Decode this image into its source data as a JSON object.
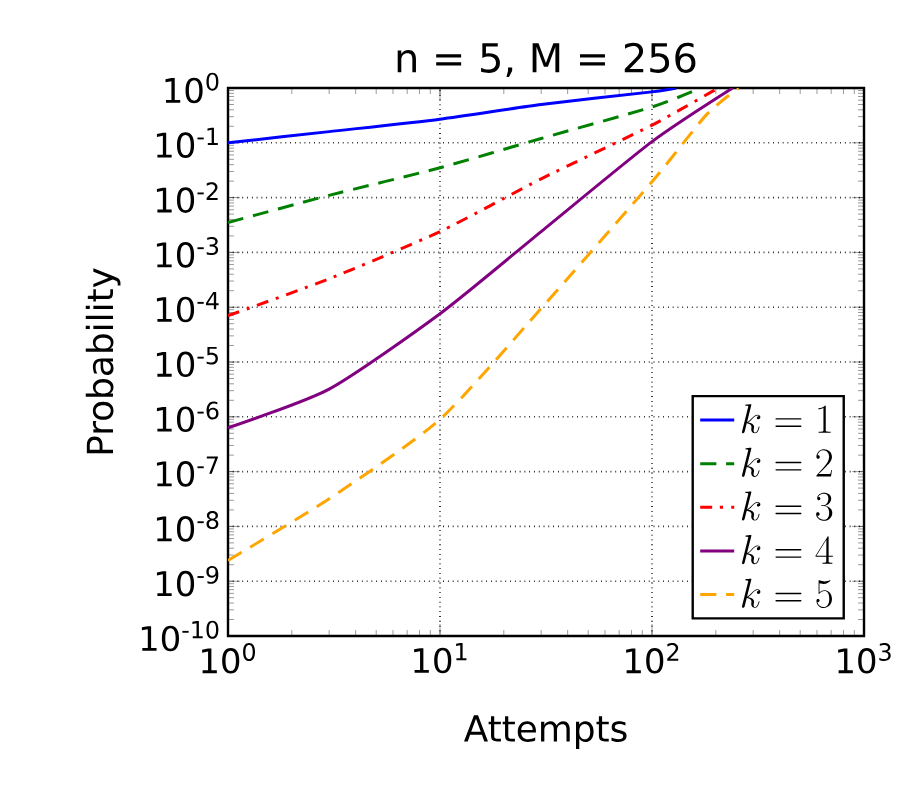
{
  "chart_data": {
    "type": "line",
    "title": "n = 5, M = 256",
    "xlabel": "Attempts",
    "ylabel": "Probability",
    "log": "xy",
    "grid": true,
    "legend": "bottom right",
    "xlim": [
      1,
      1000
    ],
    "ylim": [
      1e-10,
      1
    ],
    "xticks": [
      {
        "value": 1,
        "label": "10$^{0}$"
      },
      {
        "value": 10,
        "label": "10$^{1}$"
      },
      {
        "value": 100,
        "label": "10$^{2}$"
      },
      {
        "value": 1000,
        "label": "10$^{3}$"
      }
    ],
    "yticks": [
      {
        "value": 1e-10,
        "label": "10$^{-10}$"
      },
      {
        "value": 1e-09,
        "label": "10$^{-9}$"
      },
      {
        "value": 1e-08,
        "label": "10$^{-8}$"
      },
      {
        "value": 1e-07,
        "label": "10$^{-7}$"
      },
      {
        "value": 1e-06,
        "label": "10$^{-6}$"
      },
      {
        "value": 1e-05,
        "label": "10$^{-5}$"
      },
      {
        "value": 0.0001,
        "label": "10$^{-4}$"
      },
      {
        "value": 0.001,
        "label": "10$^{-3}$"
      },
      {
        "value": 0.01,
        "label": "10$^{-2}$"
      },
      {
        "value": 0.1,
        "label": "10$^{-1}$"
      },
      {
        "value": 1,
        "label": "10$^{0}$"
      }
    ],
    "series": [
      {
        "name": "k=1",
        "color": "#0000ff",
        "line_style": "solid",
        "x": [
          1,
          3,
          10,
          30,
          100,
          130
        ],
        "values": [
          0.1,
          0.16,
          0.27,
          0.5,
          0.85,
          1
        ]
      },
      {
        "name": "k=2",
        "color": "#008000",
        "line_style": "dashed",
        "x": [
          1,
          3,
          10,
          30,
          100,
          170
        ],
        "values": [
          0.0035,
          0.011,
          0.035,
          0.12,
          0.45,
          1
        ]
      },
      {
        "name": "k=3",
        "color": "#ff0000",
        "line_style": "dashdot",
        "x": [
          1,
          3,
          10,
          30,
          100,
          205
        ],
        "values": [
          7e-05,
          0.00033,
          0.0024,
          0.022,
          0.21,
          1
        ]
      },
      {
        "name": "k=4",
        "color": "#800080",
        "line_style": "solid",
        "x": [
          1,
          3,
          10,
          30,
          100,
          240
        ],
        "values": [
          6.3e-07,
          3.2e-06,
          7.6e-05,
          0.0024,
          0.105,
          1
        ]
      },
      {
        "name": "k=5",
        "color": "#ffa500",
        "line_style": "dashed",
        "x": [
          1,
          3,
          10,
          30,
          100,
          180,
          256
        ],
        "values": [
          2.4e-09,
          3.2e-08,
          9e-07,
          9.5e-05,
          0.0195,
          0.32,
          1
        ]
      }
    ]
  }
}
